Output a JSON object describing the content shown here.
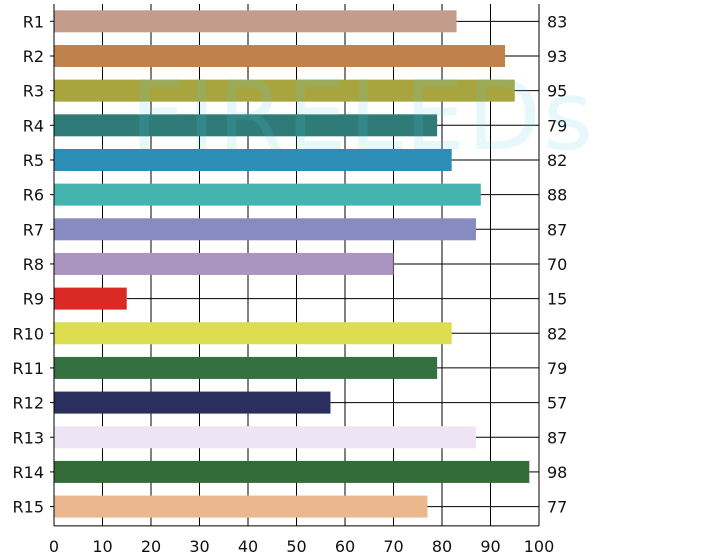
{
  "watermark": "FIRELEDs",
  "chart_data": {
    "type": "bar",
    "orientation": "horizontal",
    "categories": [
      "R1",
      "R2",
      "R3",
      "R4",
      "R5",
      "R6",
      "R7",
      "R8",
      "R9",
      "R10",
      "R11",
      "R12",
      "R13",
      "R14",
      "R15"
    ],
    "values": [
      83,
      93,
      95,
      79,
      82,
      88,
      87,
      70,
      15,
      82,
      79,
      57,
      87,
      98,
      77
    ],
    "colors": [
      "#c49c8e",
      "#c0814d",
      "#a8a43e",
      "#2e7b78",
      "#2c8eb6",
      "#45b3ae",
      "#878bc0",
      "#aa94c0",
      "#da2a26",
      "#dddd50",
      "#347040",
      "#2a2f5f",
      "#efe4f3",
      "#336b39",
      "#eab78e"
    ],
    "title": "",
    "xlabel": "",
    "ylabel": "",
    "xlim": [
      0,
      100
    ],
    "xticks": [
      0,
      10,
      20,
      30,
      40,
      50,
      60,
      70,
      80,
      90,
      100
    ],
    "grid": true,
    "value_labels": "right"
  }
}
